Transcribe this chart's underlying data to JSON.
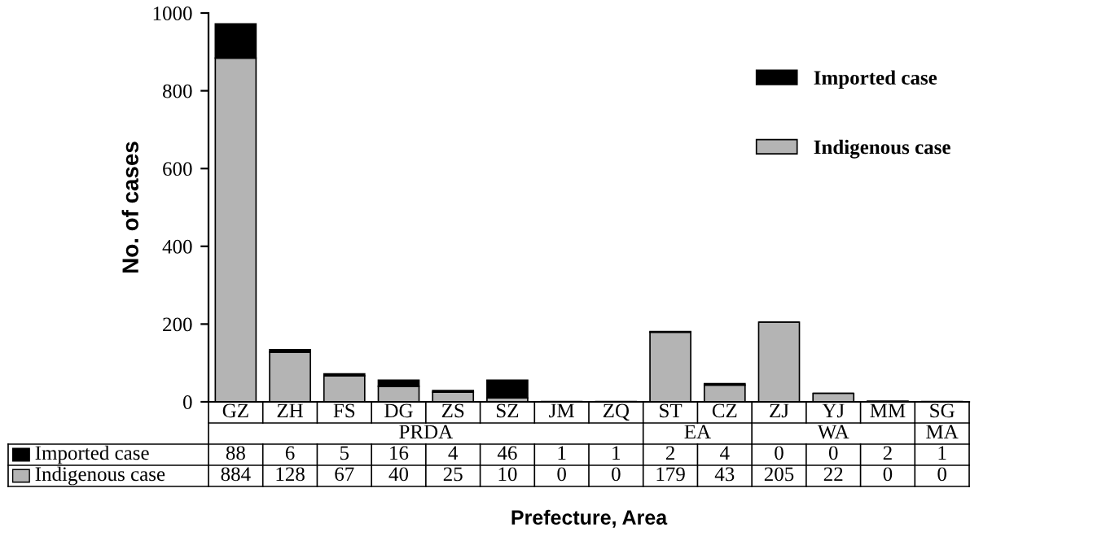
{
  "chart_data": {
    "type": "bar",
    "stacked": true,
    "xlabel": "Prefecture, Area",
    "ylabel": "No. of cases",
    "categories": [
      "GZ",
      "ZH",
      "FS",
      "DG",
      "ZS",
      "SZ",
      "JM",
      "ZQ",
      "ST",
      "CZ",
      "ZJ",
      "YJ",
      "MM",
      "SG"
    ],
    "series": [
      {
        "name": "Indigenous case",
        "color": "#b4b4b4",
        "values": [
          884,
          128,
          67,
          40,
          25,
          10,
          0,
          0,
          179,
          43,
          205,
          22,
          0,
          0
        ]
      },
      {
        "name": "Imported case",
        "color": "#000000",
        "values": [
          88,
          6,
          5,
          16,
          4,
          46,
          1,
          1,
          2,
          4,
          0,
          0,
          2,
          1
        ]
      }
    ],
    "annotations": [
      "PRDA",
      "EA",
      "WA",
      "MA"
    ],
    "ylim": [
      0,
      1000
    ],
    "yticks": [
      0,
      200,
      400,
      600,
      800,
      1000
    ],
    "data_labels": true,
    "legend": "top right",
    "grid": false
  }
}
